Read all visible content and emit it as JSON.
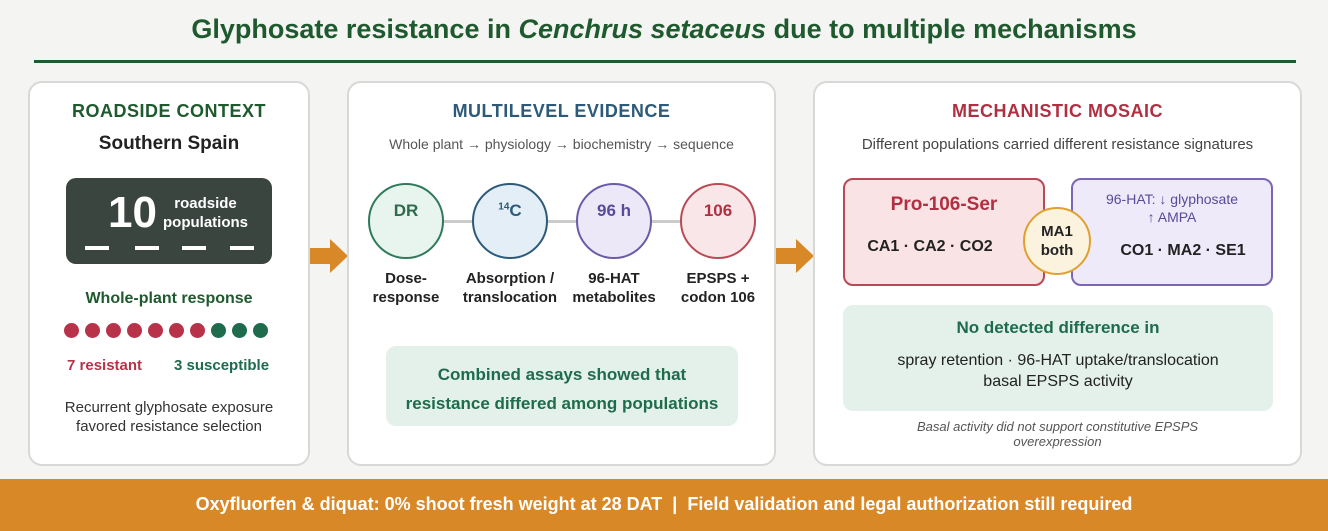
{
  "header": {
    "title_pre": "Glyphosate resistance in ",
    "title_species": "Cenchrus setaceus",
    "title_post": " due to multiple mechanisms"
  },
  "panel1": {
    "heading": "ROADSIDE CONTEXT",
    "region": "Southern Spain",
    "count": "10",
    "count_label_1": "roadside",
    "count_label_2": "populations",
    "response_heading": "Whole-plant response",
    "resistant_count": 7,
    "susceptible_count": 3,
    "resistant_label": "7 resistant",
    "susceptible_label": "3 susceptible",
    "note_1": "Recurrent glyphosate exposure",
    "note_2": "favored resistance selection"
  },
  "panel2": {
    "heading": "MULTILEVEL EVIDENCE",
    "subtitle": "Whole plant → physiology → biochemistry → sequence",
    "steps": [
      {
        "badge": "DR",
        "label_1": "Dose-",
        "label_2": "response"
      },
      {
        "badge_sup": "14",
        "badge": "C",
        "label_1": "Absorption /",
        "label_2": "translocation"
      },
      {
        "badge": "96 h",
        "label_1": "96-HAT",
        "label_2": "metabolites"
      },
      {
        "badge": "106",
        "label_1": "EPSPS +",
        "label_2": "codon 106"
      }
    ],
    "summary_1": "Combined assays showed that",
    "summary_2": "resistance differed among populations"
  },
  "panel3": {
    "heading": "MECHANISTIC MOSAIC",
    "subtitle": "Different populations carried different resistance signatures",
    "target_site": {
      "title": "Pro-106-Ser",
      "populations": "CA1 · CA2 · CO2"
    },
    "overlap": {
      "line_1": "MA1",
      "line_2": "both"
    },
    "metabolic": {
      "line_1": "96-HAT: ↓ glyphosate",
      "line_2": "↑ AMPA",
      "populations": "CO1 · MA2 · SE1"
    },
    "nodiff_heading": "No detected difference in",
    "nodiff_1": "spray retention · 96-HAT uptake/translocation",
    "nodiff_2": "basal EPSPS activity",
    "footnote_1": "Basal activity did not support constitutive EPSPS",
    "footnote_2": "overexpression"
  },
  "footer": {
    "text": "Oxyfluorfen & diquat: 0% shoot fresh weight at 28 DAT  |  Field validation and legal authorization still required"
  },
  "colors": {
    "title_green": "#1f5a2e",
    "resistant_red": "#b8334a",
    "susceptible_green": "#1e6b4e",
    "accent_orange": "#d98828",
    "evidence_blue": "#2c5a78",
    "mosaic_red": "#b03041",
    "metabolic_purple": "#5a4a9a"
  }
}
